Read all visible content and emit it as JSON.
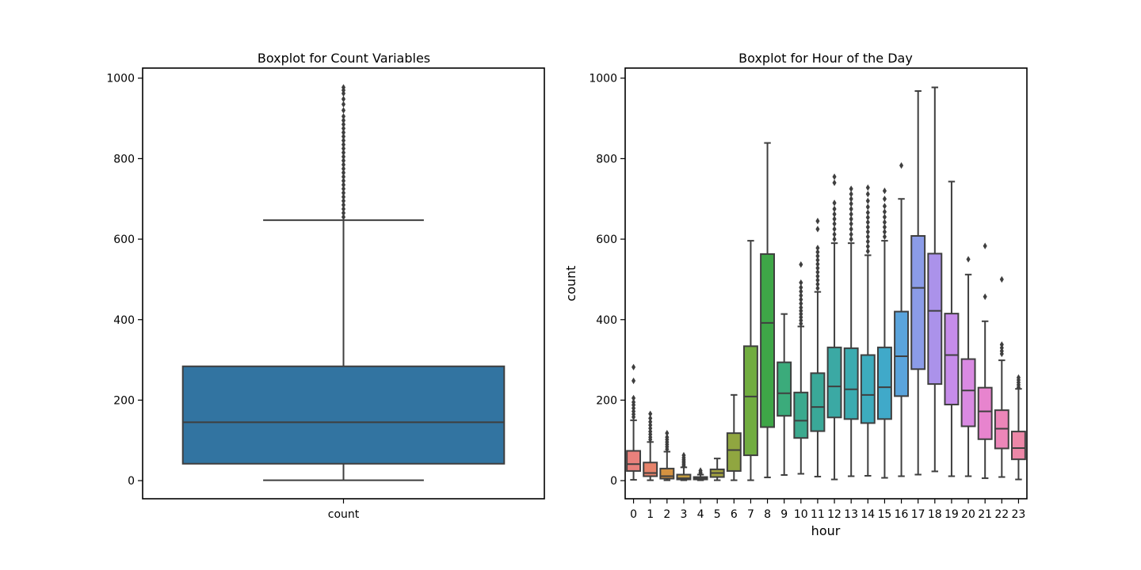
{
  "chart_data": [
    {
      "type": "boxplot",
      "title": "Boxplot for Count Variables",
      "xlabel": "",
      "ylabel": "",
      "ylim": [
        -45,
        1025
      ],
      "yticks": [
        0,
        200,
        400,
        600,
        800,
        1000
      ],
      "grid": false,
      "categories": [
        "count"
      ],
      "boxes": [
        {
          "category": "count",
          "color": "#3274a1",
          "whisker_low": 1,
          "q1": 42,
          "median": 145,
          "q3": 284,
          "whisker_high": 647,
          "outliers": [
            655,
            665,
            675,
            685,
            695,
            705,
            715,
            725,
            735,
            745,
            755,
            765,
            775,
            785,
            795,
            805,
            815,
            825,
            835,
            845,
            855,
            865,
            875,
            885,
            895,
            905,
            920,
            935,
            948,
            962,
            970,
            977
          ]
        }
      ]
    },
    {
      "type": "boxplot",
      "title": "Boxplot for Hour of the Day",
      "xlabel": "hour",
      "ylabel": "count",
      "ylim": [
        -45,
        1025
      ],
      "yticks": [
        0,
        200,
        400,
        600,
        800,
        1000
      ],
      "grid": false,
      "categories": [
        "0",
        "1",
        "2",
        "3",
        "4",
        "5",
        "6",
        "7",
        "8",
        "9",
        "10",
        "11",
        "12",
        "13",
        "14",
        "15",
        "16",
        "17",
        "18",
        "19",
        "20",
        "21",
        "22",
        "23"
      ],
      "boxes": [
        {
          "category": "0",
          "color": "#e1812c",
          "whisker_low": 2,
          "q1": 24,
          "median": 41,
          "q3": 74,
          "whisker_high": 150,
          "outliers": [
            158,
            165,
            172,
            180,
            188,
            195,
            205,
            248,
            282
          ]
        },
        {
          "category": "1",
          "color": "#e1812c",
          "whisker_low": 1,
          "q1": 11,
          "median": 19,
          "q3": 45,
          "whisker_high": 96,
          "outliers": [
            102,
            108,
            115,
            122,
            130,
            138,
            146,
            155,
            166
          ]
        },
        {
          "category": "2",
          "color": "#e1812c",
          "whisker_low": 1,
          "q1": 5,
          "median": 11,
          "q3": 30,
          "whisker_high": 72,
          "outliers": [
            78,
            84,
            90,
            96,
            102,
            108,
            118
          ]
        },
        {
          "category": "3",
          "color": "#e1812c",
          "whisker_low": 1,
          "q1": 3,
          "median": 6,
          "q3": 15,
          "whisker_high": 33,
          "outliers": [
            36,
            40,
            44,
            48,
            52,
            57,
            63
          ]
        },
        {
          "category": "4",
          "color": "#e1812c",
          "whisker_low": 1,
          "q1": 3,
          "median": 6,
          "q3": 9,
          "whisker_high": 15,
          "outliers": [
            18,
            21,
            25
          ]
        },
        {
          "category": "5",
          "color": "#e1812c",
          "whisker_low": 1,
          "q1": 9,
          "median": 19,
          "q3": 28,
          "whisker_high": 55,
          "outliers": []
        },
        {
          "category": "6",
          "color": "#e1812c",
          "whisker_low": 1,
          "q1": 24,
          "median": 76,
          "q3": 118,
          "whisker_high": 213,
          "outliers": []
        },
        {
          "category": "7",
          "color": "#e1812c",
          "whisker_low": 1,
          "q1": 63,
          "median": 209,
          "q3": 334,
          "whisker_high": 596,
          "outliers": []
        },
        {
          "category": "8",
          "color": "#e1812c",
          "whisker_low": 8,
          "q1": 133,
          "median": 392,
          "q3": 563,
          "whisker_high": 839,
          "outliers": []
        },
        {
          "category": "9",
          "color": "#e1812c",
          "whisker_low": 14,
          "q1": 161,
          "median": 217,
          "q3": 294,
          "whisker_high": 414,
          "outliers": []
        },
        {
          "category": "10",
          "color": "#e1812c",
          "whisker_low": 17,
          "q1": 106,
          "median": 149,
          "q3": 219,
          "whisker_high": 383,
          "outliers": [
            390,
            398,
            406,
            414,
            422,
            430,
            440,
            450,
            460,
            470,
            480,
            492,
            537
          ]
        },
        {
          "category": "11",
          "color": "#e1812c",
          "whisker_low": 10,
          "q1": 123,
          "median": 183,
          "q3": 267,
          "whisker_high": 469,
          "outliers": [
            478,
            488,
            498,
            508,
            518,
            528,
            538,
            548,
            558,
            568,
            578,
            625,
            645
          ]
        },
        {
          "category": "12",
          "color": "#e1812c",
          "whisker_low": 3,
          "q1": 157,
          "median": 234,
          "q3": 331,
          "whisker_high": 590,
          "outliers": [
            600,
            612,
            625,
            638,
            650,
            662,
            675,
            690,
            740,
            755
          ]
        },
        {
          "category": "13",
          "color": "#e1812c",
          "whisker_low": 11,
          "q1": 153,
          "median": 227,
          "q3": 329,
          "whisker_high": 590,
          "outliers": [
            600,
            612,
            625,
            638,
            650,
            662,
            675,
            688,
            700,
            712,
            725
          ]
        },
        {
          "category": "14",
          "color": "#e1812c",
          "whisker_low": 12,
          "q1": 143,
          "median": 213,
          "q3": 312,
          "whisker_high": 560,
          "outliers": [
            570,
            582,
            594,
            606,
            618,
            630,
            642,
            654,
            666,
            680,
            695,
            712,
            728
          ]
        },
        {
          "category": "15",
          "color": "#e1812c",
          "whisker_low": 7,
          "q1": 153,
          "median": 232,
          "q3": 331,
          "whisker_high": 596,
          "outliers": [
            606,
            618,
            630,
            642,
            655,
            668,
            682,
            700,
            720
          ]
        },
        {
          "category": "16",
          "color": "#e1812c",
          "whisker_low": 11,
          "q1": 210,
          "median": 309,
          "q3": 420,
          "whisker_high": 700,
          "outliers": [
            783
          ]
        },
        {
          "category": "17",
          "color": "#e1812c",
          "whisker_low": 15,
          "q1": 277,
          "median": 479,
          "q3": 608,
          "whisker_high": 968,
          "outliers": []
        },
        {
          "category": "18",
          "color": "#e1812c",
          "whisker_low": 23,
          "q1": 240,
          "median": 422,
          "q3": 564,
          "whisker_high": 977,
          "outliers": []
        },
        {
          "category": "19",
          "color": "#e1812c",
          "whisker_low": 11,
          "q1": 189,
          "median": 312,
          "q3": 415,
          "whisker_high": 743,
          "outliers": []
        },
        {
          "category": "20",
          "color": "#e1812c",
          "whisker_low": 11,
          "q1": 135,
          "median": 224,
          "q3": 302,
          "whisker_high": 512,
          "outliers": [
            550
          ]
        },
        {
          "category": "21",
          "color": "#e1812c",
          "whisker_low": 6,
          "q1": 103,
          "median": 172,
          "q3": 231,
          "whisker_high": 396,
          "outliers": [
            457,
            583
          ]
        },
        {
          "category": "22",
          "color": "#e1812c",
          "whisker_low": 9,
          "q1": 80,
          "median": 129,
          "q3": 175,
          "whisker_high": 299,
          "outliers": [
            315,
            322,
            330,
            338,
            500
          ]
        },
        {
          "category": "23",
          "color": "#e1812c",
          "whisker_low": 3,
          "q1": 53,
          "median": 81,
          "q3": 122,
          "whisker_high": 228,
          "outliers": [
            232,
            238,
            244,
            250,
            256
          ]
        }
      ]
    }
  ],
  "colors": {
    "box_line": "#3f3f3f",
    "hour_palette": [
      "#e9817c",
      "#e6836b",
      "#d59241",
      "#c19b40",
      "#b09e40",
      "#a4a340",
      "#90a640",
      "#71ad40",
      "#3ea647",
      "#3bab7b",
      "#3ba98e",
      "#3aa898",
      "#3ba9a4",
      "#3babb0",
      "#3dacbe",
      "#40a9c9",
      "#5aa4dc",
      "#8b9ce8",
      "#ab92ea",
      "#c68cea",
      "#d98ae2",
      "#e784ce",
      "#ec86b9",
      "#ec87a7"
    ]
  }
}
